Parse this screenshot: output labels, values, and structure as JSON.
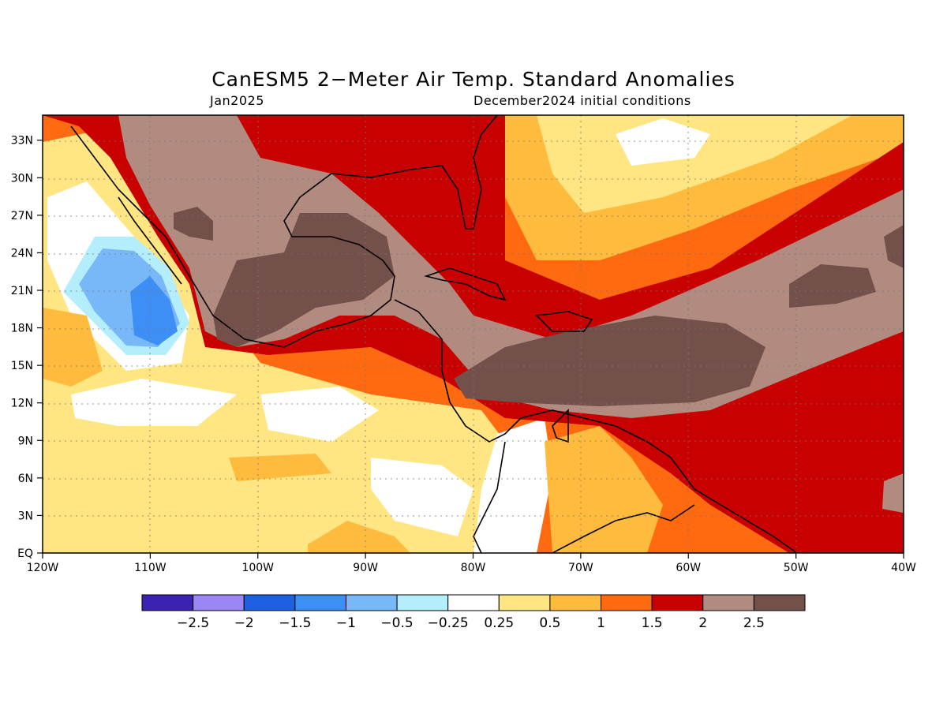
{
  "title": "CanESM5 2−Meter Air Temp. Standard Anomalies",
  "subtitle_left": "Jan2025",
  "subtitle_right": "December2024 initial conditions",
  "lon_ticks": [
    "120W",
    "110W",
    "100W",
    "90W",
    "80W",
    "70W",
    "60W",
    "50W",
    "40W"
  ],
  "lat_ticks": [
    "EQ",
    "3N",
    "6N",
    "9N",
    "12N",
    "15N",
    "18N",
    "21N",
    "24N",
    "27N",
    "30N",
    "33N"
  ],
  "colorbar": {
    "colors": [
      "#3b22b3",
      "#9c86f5",
      "#1e60e0",
      "#3d8ef5",
      "#78b8f8",
      "#b4eefc",
      "#ffffff",
      "#ffe683",
      "#ffbb3d",
      "#ff6a10",
      "#c80000",
      "#b18a80",
      "#74504a"
    ],
    "labels": [
      "−2.5",
      "−2",
      "−1.5",
      "−1",
      "−0.5",
      "−0.25",
      "0.25",
      "0.5",
      "1",
      "1.5",
      "2",
      "2.5"
    ]
  },
  "colors": {
    "white": "#ffffff",
    "yellow": "#ffe683",
    "gold": "#ffbb3d",
    "orange": "#ff6a10",
    "red": "#c80000",
    "rose": "#b18a80",
    "brown": "#74504a",
    "cyan": "#b4eefc",
    "lightblue": "#78b8f8",
    "blue": "#3d8ef5"
  }
}
